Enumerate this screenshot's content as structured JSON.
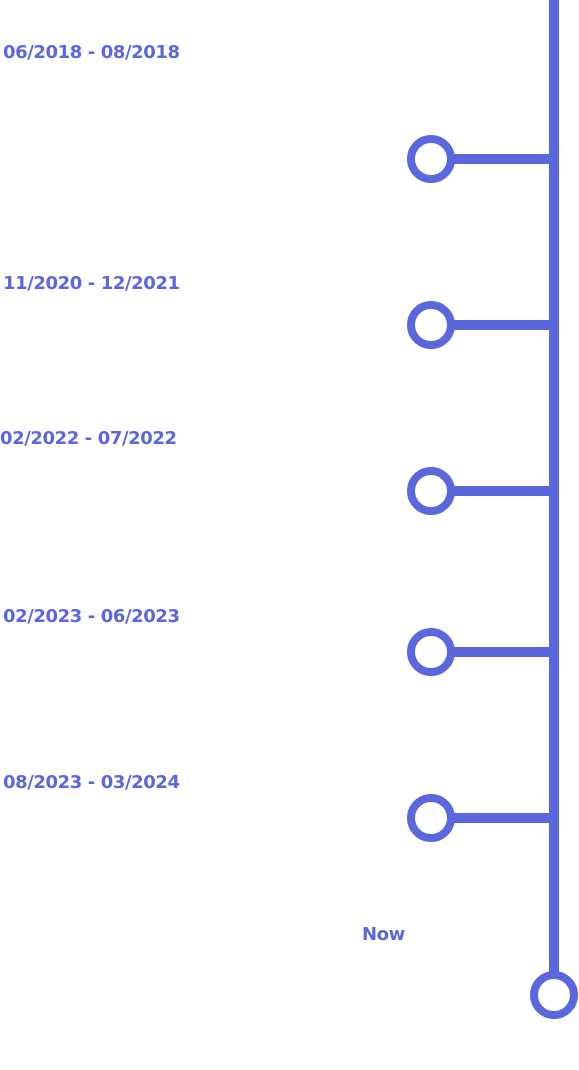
{
  "colors": {
    "accent": "#5b67dc",
    "background": "#ffffff"
  },
  "timeline": {
    "entries": [
      {
        "period": "06/2018 - 08/2018"
      },
      {
        "period": "11/2020 - 12/2021"
      },
      {
        "period": "02/2022 - 07/2022"
      },
      {
        "period": "02/2023 - 06/2023"
      },
      {
        "period": "08/2023 - 03/2024"
      }
    ],
    "current_label": "Now"
  }
}
